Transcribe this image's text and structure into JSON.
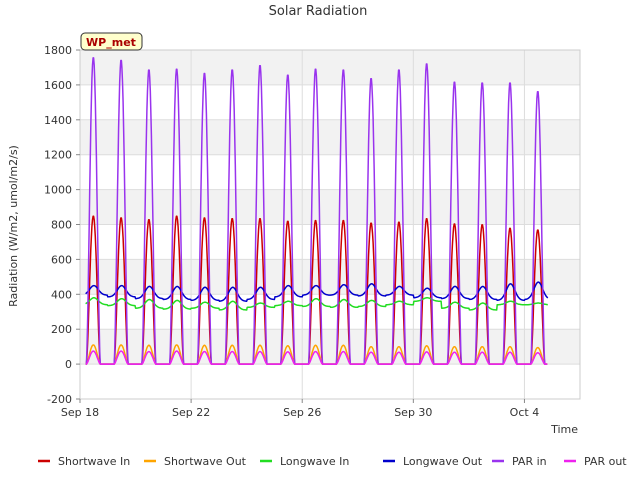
{
  "chart_data": {
    "type": "line",
    "title": "Solar Radiation",
    "xlabel": "Time",
    "ylabel": "Radiation (W/m2, umol/m2/s)",
    "badge": "WP_met",
    "ylim": [
      -200,
      1800
    ],
    "yticks": [
      -200,
      0,
      200,
      400,
      600,
      800,
      1000,
      1200,
      1400,
      1600,
      1800
    ],
    "xlim_days": [
      0,
      18
    ],
    "xticks": [
      {
        "day": 0,
        "label": "Sep 18"
      },
      {
        "day": 4,
        "label": "Sep 22"
      },
      {
        "day": 8,
        "label": "Sep 26"
      },
      {
        "day": 12,
        "label": "Sep 30"
      },
      {
        "day": 16,
        "label": "Oct 4"
      }
    ],
    "grid": true,
    "legend_position": "bottom",
    "x_days": [
      0.5,
      1.5,
      2.5,
      3.5,
      4.5,
      5.5,
      6.5,
      7.5,
      8.5,
      9.5,
      10.5,
      11.5,
      12.5,
      13.5,
      14.5,
      15.5,
      16.5
    ],
    "series": [
      {
        "name": "Shortwave In",
        "color": "#cc0000",
        "kind": "diurnal",
        "peaks": [
          850,
          840,
          830,
          850,
          840,
          835,
          835,
          820,
          825,
          825,
          810,
          815,
          835,
          805,
          800,
          780,
          770
        ]
      },
      {
        "name": "Shortwave Out",
        "color": "#ffa500",
        "kind": "diurnal",
        "peaks": [
          110,
          110,
          108,
          110,
          108,
          108,
          108,
          105,
          108,
          108,
          100,
          100,
          105,
          100,
          100,
          100,
          95
        ]
      },
      {
        "name": "Longwave In",
        "color": "#22dd22",
        "kind": "continuous",
        "day_values": [
          380,
          375,
          370,
          365,
          355,
          360,
          350,
          360,
          375,
          370,
          365,
          360,
          380,
          355,
          350,
          360,
          350
        ],
        "night_values": [
          340,
          335,
          320,
          315,
          320,
          310,
          325,
          335,
          330,
          325,
          330,
          340,
          360,
          320,
          310,
          340,
          340
        ]
      },
      {
        "name": "Longwave Out",
        "color": "#0000cc",
        "kind": "continuous",
        "day_values": [
          450,
          450,
          445,
          445,
          440,
          440,
          440,
          450,
          450,
          455,
          460,
          445,
          435,
          445,
          445,
          460,
          470
        ],
        "night_values": [
          395,
          385,
          375,
          370,
          365,
          360,
          370,
          385,
          395,
          395,
          390,
          395,
          380,
          375,
          370,
          365,
          370
        ]
      },
      {
        "name": "PAR in",
        "color": "#9933ee",
        "kind": "diurnal",
        "peaks": [
          1760,
          1745,
          1690,
          1695,
          1670,
          1690,
          1715,
          1660,
          1695,
          1690,
          1640,
          1690,
          1725,
          1620,
          1615,
          1615,
          1565
        ]
      },
      {
        "name": "PAR out",
        "color": "#ee22ee",
        "kind": "diurnal",
        "peaks": [
          75,
          75,
          72,
          75,
          72,
          72,
          72,
          70,
          72,
          72,
          68,
          68,
          70,
          68,
          68,
          68,
          65
        ]
      }
    ]
  }
}
